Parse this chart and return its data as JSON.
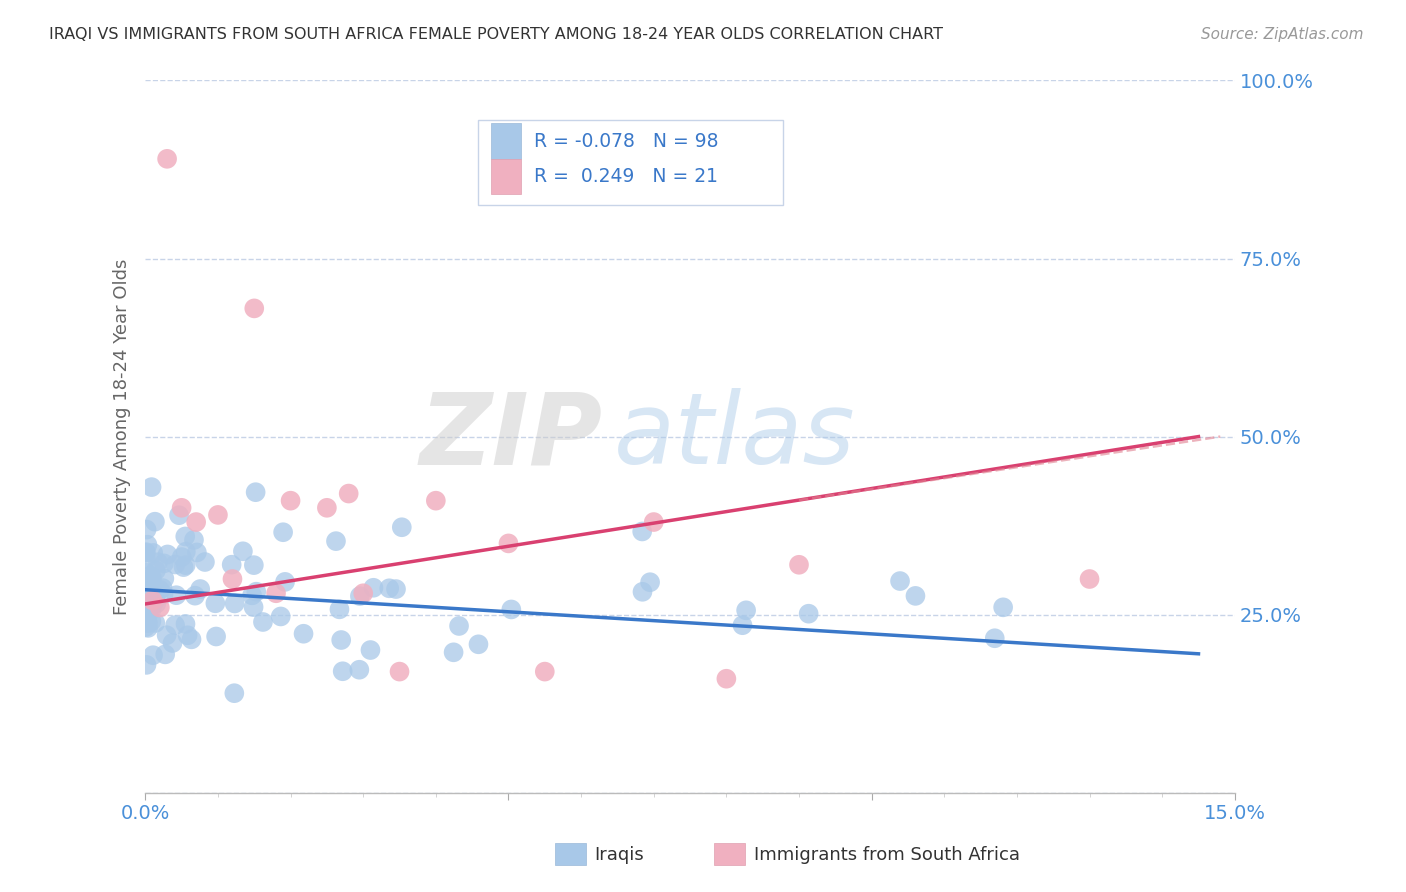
{
  "title": "IRAQI VS IMMIGRANTS FROM SOUTH AFRICA FEMALE POVERTY AMONG 18-24 YEAR OLDS CORRELATION CHART",
  "source": "Source: ZipAtlas.com",
  "ylabel": "Female Poverty Among 18-24 Year Olds",
  "xlim": [
    0.0,
    0.15
  ],
  "ylim": [
    0.0,
    1.0
  ],
  "blue_color": "#a8c8e8",
  "pink_color": "#f0b0c0",
  "trend_blue": "#3a78c9",
  "trend_pink": "#d94070",
  "trend_pink_dashed": "#e08090",
  "R_blue": -0.078,
  "N_blue": 98,
  "R_pink": 0.249,
  "N_pink": 21,
  "watermark_zip": "ZIP",
  "watermark_atlas": "atlas",
  "legend_labels": [
    "Iraqis",
    "Immigrants from South Africa"
  ],
  "background_color": "#ffffff",
  "grid_color": "#c8d4e8"
}
